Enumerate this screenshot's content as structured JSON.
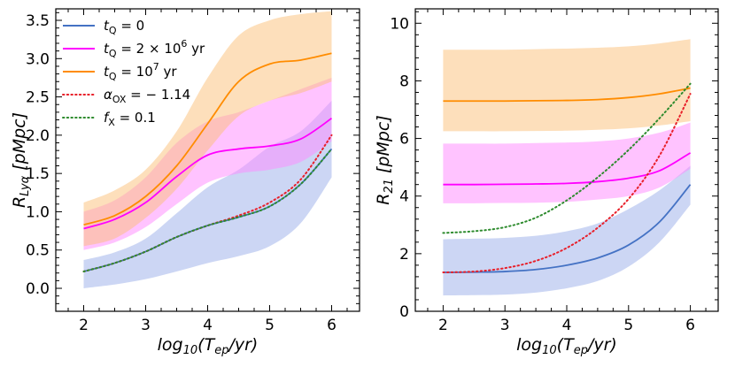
{
  "chart_data": [
    {
      "type": "line",
      "panel": "left",
      "xlabel": "log10(Tep/yr)",
      "ylabel": "R_Lyα [pMpc]",
      "xlim": [
        1.55,
        6.45
      ],
      "ylim": [
        -0.3,
        3.65
      ],
      "xticks": [
        2,
        3,
        4,
        5,
        6
      ],
      "yticks": [
        0.0,
        0.5,
        1.0,
        1.5,
        2.0,
        2.5,
        3.0,
        3.5
      ],
      "ytick_labels": [
        "0.0",
        "0.5",
        "1.0",
        "1.5",
        "2.0",
        "2.5",
        "3.0",
        "3.5"
      ],
      "legend_position": "top-left",
      "legend": [
        {
          "series": "tq0",
          "base": "t",
          "sub": "Q",
          "rest": " = 0",
          "style": "solid",
          "color": "#4472c4"
        },
        {
          "series": "tq2e6",
          "base": "t",
          "sub": "Q",
          "rest": " = 2 × 10",
          "sup": "6",
          "unit": " yr",
          "style": "solid",
          "color": "#ff00ff"
        },
        {
          "series": "tq1e7",
          "base": "t",
          "sub": "Q",
          "rest": " = 10",
          "sup": "7",
          "unit": " yr",
          "style": "solid",
          "color": "#ff8c00"
        },
        {
          "series": "aox",
          "base": "α",
          "sub": "OX",
          "rest": " = − 1.14",
          "style": "dotted",
          "color": "#e8202a"
        },
        {
          "series": "fx",
          "base": "f",
          "sub": "X",
          "rest": " = 0.1",
          "style": "dotted",
          "color": "#2e8b2e"
        }
      ],
      "series": [
        {
          "name": "tq0",
          "color": "#4472c4",
          "fill": "#9aaeea",
          "style": "solid",
          "x": [
            2,
            2.5,
            3,
            3.5,
            4,
            4.5,
            5,
            5.5,
            6
          ],
          "y": [
            0.22,
            0.33,
            0.48,
            0.67,
            0.82,
            0.93,
            1.07,
            1.36,
            1.82
          ],
          "lower": [
            0.0,
            0.05,
            0.12,
            0.22,
            0.33,
            0.42,
            0.55,
            0.85,
            1.45
          ],
          "upper": [
            0.37,
            0.47,
            0.65,
            0.98,
            1.32,
            1.55,
            1.85,
            2.05,
            2.45
          ]
        },
        {
          "name": "tq2e6",
          "color": "#ff00ff",
          "fill": "#ff88ff",
          "style": "solid",
          "x": [
            2,
            2.5,
            3,
            3.5,
            4,
            4.5,
            5,
            5.5,
            6
          ],
          "y": [
            0.78,
            0.9,
            1.12,
            1.46,
            1.74,
            1.82,
            1.86,
            1.95,
            2.22
          ],
          "lower": [
            0.5,
            0.6,
            0.8,
            1.1,
            1.38,
            1.5,
            1.55,
            1.65,
            1.92
          ],
          "upper": [
            1.0,
            1.15,
            1.45,
            1.9,
            2.18,
            2.3,
            2.45,
            2.6,
            2.75
          ]
        },
        {
          "name": "tq1e7",
          "color": "#ff8c00",
          "fill": "#fbbf77",
          "style": "solid",
          "x": [
            2,
            2.5,
            3,
            3.5,
            4,
            4.5,
            5,
            5.5,
            6
          ],
          "y": [
            0.83,
            0.95,
            1.2,
            1.6,
            2.15,
            2.7,
            2.93,
            2.98,
            3.07
          ],
          "lower": [
            0.55,
            0.65,
            0.92,
            1.3,
            1.8,
            2.25,
            2.45,
            2.55,
            2.7
          ],
          "upper": [
            1.12,
            1.28,
            1.55,
            2.05,
            2.75,
            3.3,
            3.5,
            3.58,
            3.62
          ]
        },
        {
          "name": "aox",
          "color": "#e8202a",
          "style": "dotted",
          "x": [
            2,
            2.5,
            3,
            3.5,
            4,
            4.5,
            5,
            5.5,
            6
          ],
          "y": [
            0.22,
            0.33,
            0.48,
            0.67,
            0.82,
            0.95,
            1.12,
            1.42,
            2.0
          ]
        },
        {
          "name": "fx",
          "color": "#2e8b2e",
          "style": "dotted",
          "x": [
            2,
            2.5,
            3,
            3.5,
            4,
            4.5,
            5,
            5.5,
            6
          ],
          "y": [
            0.22,
            0.33,
            0.48,
            0.67,
            0.82,
            0.93,
            1.07,
            1.36,
            1.82
          ]
        }
      ]
    },
    {
      "type": "line",
      "panel": "right",
      "xlabel": "log10(Tep/yr)",
      "ylabel": "R_21 [pMpc]",
      "xlim": [
        1.55,
        6.45
      ],
      "ylim": [
        0,
        10.5
      ],
      "xticks": [
        2,
        3,
        4,
        5,
        6
      ],
      "yticks": [
        0,
        2,
        4,
        6,
        8,
        10
      ],
      "ytick_labels": [
        "0",
        "2",
        "4",
        "6",
        "8",
        "10"
      ],
      "series": [
        {
          "name": "tq0",
          "color": "#4472c4",
          "fill": "#9aaeea",
          "style": "solid",
          "x": [
            2,
            2.5,
            3,
            3.5,
            4,
            4.5,
            5,
            5.5,
            6
          ],
          "y": [
            1.35,
            1.36,
            1.38,
            1.45,
            1.6,
            1.85,
            2.3,
            3.1,
            4.4
          ],
          "lower": [
            0.55,
            0.56,
            0.58,
            0.65,
            0.8,
            1.05,
            1.55,
            2.4,
            3.7
          ],
          "upper": [
            2.5,
            2.52,
            2.55,
            2.62,
            2.78,
            3.05,
            3.55,
            4.2,
            5.05
          ]
        },
        {
          "name": "tq2e6",
          "color": "#ff00ff",
          "fill": "#ff88ff",
          "style": "solid",
          "x": [
            2,
            2.5,
            3,
            3.5,
            4,
            4.5,
            5,
            5.5,
            6
          ],
          "y": [
            4.4,
            4.4,
            4.41,
            4.42,
            4.44,
            4.5,
            4.62,
            4.88,
            5.5
          ],
          "lower": [
            3.75,
            3.75,
            3.76,
            3.77,
            3.8,
            3.88,
            4.0,
            4.3,
            4.95
          ],
          "upper": [
            5.82,
            5.82,
            5.82,
            5.84,
            5.86,
            5.9,
            6.0,
            6.2,
            6.55
          ]
        },
        {
          "name": "tq1e7",
          "color": "#ff8c00",
          "fill": "#fbbf77",
          "style": "solid",
          "x": [
            2,
            2.5,
            3,
            3.5,
            4,
            4.5,
            5,
            5.5,
            6
          ],
          "y": [
            7.3,
            7.3,
            7.3,
            7.31,
            7.32,
            7.35,
            7.42,
            7.55,
            7.75
          ],
          "lower": [
            6.25,
            6.25,
            6.25,
            6.26,
            6.27,
            6.3,
            6.35,
            6.45,
            6.6
          ],
          "upper": [
            9.08,
            9.08,
            9.08,
            9.1,
            9.12,
            9.15,
            9.2,
            9.3,
            9.45
          ]
        },
        {
          "name": "aox",
          "color": "#e8202a",
          "style": "dotted",
          "x": [
            2,
            2.5,
            3,
            3.5,
            4,
            4.5,
            5,
            5.5,
            6
          ],
          "y": [
            1.35,
            1.38,
            1.5,
            1.75,
            2.2,
            2.9,
            3.9,
            5.4,
            7.55
          ]
        },
        {
          "name": "fx",
          "color": "#2e8b2e",
          "style": "dotted",
          "x": [
            2,
            2.5,
            3,
            3.5,
            4,
            4.5,
            5,
            5.5,
            6
          ],
          "y": [
            2.72,
            2.78,
            2.92,
            3.25,
            3.85,
            4.65,
            5.6,
            6.7,
            7.9
          ]
        }
      ]
    }
  ]
}
